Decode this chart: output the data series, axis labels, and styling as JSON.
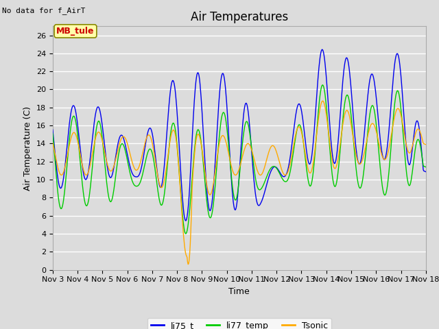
{
  "title": "Air Temperatures",
  "xlabel": "Time",
  "ylabel": "Air Temperature (C)",
  "top_left_text": "No data for f_AirT",
  "annotation_text": "MB_tule",
  "ylim": [
    0,
    27
  ],
  "yticks": [
    0,
    2,
    4,
    6,
    8,
    10,
    12,
    14,
    16,
    18,
    20,
    22,
    24,
    26
  ],
  "xtick_labels": [
    "Nov 3",
    "Nov 4",
    "Nov 5",
    "Nov 6",
    "Nov 7",
    "Nov 8",
    "Nov 9",
    "Nov 10",
    "Nov 11",
    "Nov 12",
    "Nov 13",
    "Nov 14",
    "Nov 15",
    "Nov 16",
    "Nov 17",
    "Nov 18"
  ],
  "line_colors": {
    "li75_t": "#0000ee",
    "li77_temp": "#00cc00",
    "Tsonic": "#ffaa00"
  },
  "background_color": "#dcdcdc",
  "plot_bg_color": "#dcdcdc",
  "grid_color": "#ffffff",
  "annotation_bg": "#ffffaa",
  "annotation_border": "#888800",
  "annotation_text_color": "#cc0000",
  "title_fontsize": 12,
  "axis_label_fontsize": 9,
  "tick_fontsize": 8
}
